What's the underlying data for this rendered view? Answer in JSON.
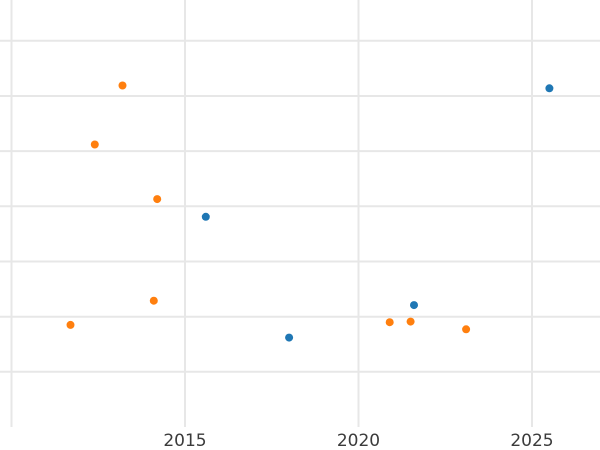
{
  "chart_data": {
    "type": "scatter",
    "title": "",
    "xlabel": "",
    "ylabel": "",
    "grid": true,
    "legend_position": "none",
    "xlim": [
      2009.7,
      2027.0
    ],
    "ylim": [
      0,
      7.74
    ],
    "y_axis_note": "y-axis tick labels are cropped out of view; y values given in gridline units (one unit per horizontal gridline, plot bottom = 0)",
    "x_gridline_years": [
      2010,
      2015,
      2020,
      2025
    ],
    "x_tick_labels": [
      {
        "year": 2015,
        "label": "2015"
      },
      {
        "year": 2020,
        "label": "2020"
      },
      {
        "year": 2025,
        "label": "2025"
      }
    ],
    "y_gridline_values": [
      1,
      2,
      3,
      4,
      5,
      6,
      7
    ],
    "series": [
      {
        "name": "blue-series",
        "color": "#1f77b4",
        "points": [
          {
            "x": 2015.6,
            "y": 3.81
          },
          {
            "x": 2018.0,
            "y": 1.62
          },
          {
            "x": 2021.6,
            "y": 2.21
          },
          {
            "x": 2025.5,
            "y": 6.14
          }
        ]
      },
      {
        "name": "orange-series",
        "color": "#ff7f0e",
        "points": [
          {
            "x": 2011.7,
            "y": 1.85
          },
          {
            "x": 2012.4,
            "y": 5.12
          },
          {
            "x": 2013.2,
            "y": 6.19
          },
          {
            "x": 2014.1,
            "y": 2.29
          },
          {
            "x": 2014.2,
            "y": 4.13
          },
          {
            "x": 2020.9,
            "y": 1.9
          },
          {
            "x": 2021.5,
            "y": 1.91
          },
          {
            "x": 2023.1,
            "y": 1.77
          }
        ]
      }
    ],
    "marker_radius_px": 4,
    "colors": {
      "background": "#ffffff",
      "grid": "#e7e7e7",
      "tick_label": "#3b3b3b"
    }
  }
}
